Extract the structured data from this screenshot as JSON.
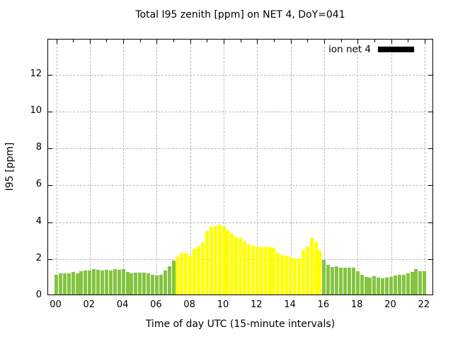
{
  "header": {
    "title": "Total I95 zenith [ppm] on NET 4, DoY=041"
  },
  "legend": {
    "label": "ion net 4",
    "swatch_color": "#000000"
  },
  "axes": {
    "x_label": "Time of day UTC (15-minute intervals)",
    "y_label": "I95 [ppm]",
    "y_ticks": [
      0,
      2,
      4,
      6,
      8,
      10,
      12
    ],
    "x_major_tick_labels": [
      "00",
      "02",
      "04",
      "06",
      "08",
      "10",
      "12",
      "14",
      "16",
      "18",
      "20",
      "22"
    ],
    "y_max": 13.9,
    "grid_style": "dashed"
  },
  "colors": {
    "bar_green": "#84c440",
    "bar_yellow": "#ffff00",
    "grid": "#b8b8b8",
    "frame": "#000000",
    "text": "#000000",
    "background": "#ffffff"
  },
  "chart_data": {
    "type": "bar",
    "title": "Total I95 zenith [ppm] on NET 4, DoY=041",
    "xlabel": "Time of day UTC (15-minute intervals)",
    "ylabel": "I95 [ppm]",
    "ylim": [
      0,
      13.9
    ],
    "legend_position": "top-right-inside",
    "series_name": "ion net 4",
    "interval_minutes": 15,
    "x": [
      "00:00",
      "00:15",
      "00:30",
      "00:45",
      "01:00",
      "01:15",
      "01:30",
      "01:45",
      "02:00",
      "02:15",
      "02:30",
      "02:45",
      "03:00",
      "03:15",
      "03:30",
      "03:45",
      "04:00",
      "04:15",
      "04:30",
      "04:45",
      "05:00",
      "05:15",
      "05:30",
      "05:45",
      "06:00",
      "06:15",
      "06:30",
      "06:45",
      "07:00",
      "07:15",
      "07:30",
      "07:45",
      "08:00",
      "08:15",
      "08:30",
      "08:45",
      "09:00",
      "09:15",
      "09:30",
      "09:45",
      "10:00",
      "10:15",
      "10:30",
      "10:45",
      "11:00",
      "11:15",
      "11:30",
      "11:45",
      "12:00",
      "12:15",
      "12:30",
      "12:45",
      "13:00",
      "13:15",
      "13:30",
      "13:45",
      "14:00",
      "14:15",
      "14:30",
      "14:45",
      "15:00",
      "15:15",
      "15:30",
      "15:45",
      "16:00",
      "16:15",
      "16:30",
      "16:45",
      "17:00",
      "17:15",
      "17:30",
      "17:45",
      "18:00",
      "18:15",
      "18:30",
      "18:45",
      "19:00",
      "19:15",
      "19:30",
      "19:45",
      "20:00",
      "20:15",
      "20:30",
      "20:45",
      "21:00",
      "21:15",
      "21:30",
      "21:45",
      "22:00"
    ],
    "values": [
      1.09,
      1.15,
      1.15,
      1.15,
      1.21,
      1.15,
      1.25,
      1.29,
      1.32,
      1.38,
      1.34,
      1.32,
      1.34,
      1.29,
      1.38,
      1.36,
      1.38,
      1.23,
      1.15,
      1.19,
      1.19,
      1.19,
      1.15,
      1.06,
      1.04,
      1.09,
      1.32,
      1.53,
      1.85,
      2.05,
      2.25,
      2.28,
      2.12,
      2.48,
      2.62,
      2.85,
      3.44,
      3.69,
      3.72,
      3.78,
      3.69,
      3.5,
      3.33,
      3.16,
      3.06,
      2.9,
      2.73,
      2.64,
      2.62,
      2.58,
      2.6,
      2.58,
      2.54,
      2.27,
      2.14,
      2.1,
      2.02,
      1.97,
      1.97,
      2.4,
      2.62,
      3.06,
      2.87,
      2.43,
      1.89,
      1.62,
      1.51,
      1.53,
      1.47,
      1.44,
      1.45,
      1.47,
      1.25,
      1.06,
      0.96,
      0.94,
      0.98,
      0.91,
      0.87,
      0.91,
      0.96,
      1.02,
      1.06,
      1.09,
      1.15,
      1.21,
      1.38,
      1.25,
      1.28
    ],
    "color_segments": [
      {
        "start_index": 0,
        "end_index": 28,
        "color": "#84c440"
      },
      {
        "start_index": 29,
        "end_index": 63,
        "color": "#ffff00"
      },
      {
        "start_index": 64,
        "end_index": 88,
        "color": "#84c440"
      }
    ]
  }
}
